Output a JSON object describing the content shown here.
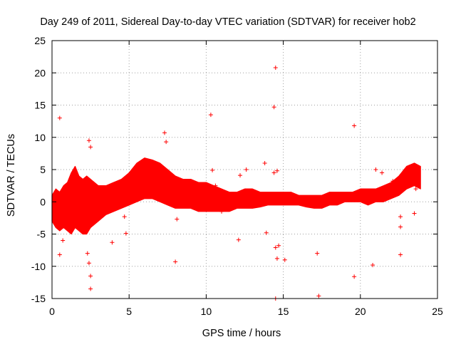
{
  "chart_data": {
    "type": "scatter",
    "title": "Day 249 of 2011, Sidereal Day-to-day VTEC variation (SDTVAR) for receiver hob2",
    "xlabel": "GPS time / hours",
    "ylabel": "SDTVAR / TECUs",
    "xlim": [
      0,
      25
    ],
    "ylim": [
      -15,
      25
    ],
    "x_ticks": [
      0,
      5,
      10,
      15,
      20,
      25
    ],
    "y_ticks": [
      -15,
      -10,
      -5,
      0,
      5,
      10,
      15,
      20,
      25
    ],
    "grid": true,
    "marker": "plus",
    "color": "#ff0000",
    "series": [
      {
        "name": "SDTVAR",
        "band_x": [
          0.0,
          0.25,
          0.5,
          0.75,
          1.0,
          1.25,
          1.5,
          1.75,
          2.0,
          2.25,
          2.5,
          2.75,
          3.0,
          3.5,
          4.0,
          4.5,
          5.0,
          5.5,
          6.0,
          6.5,
          7.0,
          7.5,
          8.0,
          8.5,
          9.0,
          9.5,
          10.0,
          10.5,
          11.0,
          11.5,
          12.0,
          12.5,
          13.0,
          13.5,
          14.0,
          14.5,
          15.0,
          15.5,
          16.0,
          16.5,
          17.0,
          17.5,
          18.0,
          18.5,
          19.0,
          19.5,
          20.0,
          20.5,
          21.0,
          21.5,
          22.0,
          22.5,
          23.0,
          23.5,
          23.9
        ],
        "band_low": [
          -3.0,
          -4.0,
          -4.5,
          -4.0,
          -4.5,
          -5.0,
          -4.0,
          -4.5,
          -5.0,
          -5.0,
          -4.0,
          -3.5,
          -3.0,
          -2.0,
          -1.5,
          -1.0,
          -0.5,
          0.0,
          0.5,
          0.5,
          0.0,
          -0.5,
          -1.0,
          -1.0,
          -1.0,
          -1.5,
          -1.5,
          -1.5,
          -1.5,
          -1.5,
          -1.0,
          -1.0,
          -1.0,
          -0.8,
          -0.5,
          -0.5,
          -0.5,
          -0.5,
          -0.5,
          -0.8,
          -1.0,
          -1.0,
          -0.5,
          -0.5,
          0.0,
          0.0,
          0.0,
          -0.5,
          0.0,
          0.0,
          0.5,
          1.0,
          2.0,
          2.5,
          2.0
        ],
        "band_high": [
          1.0,
          2.0,
          1.5,
          2.5,
          3.0,
          4.5,
          5.5,
          4.0,
          3.5,
          4.0,
          3.5,
          3.0,
          2.5,
          2.5,
          3.0,
          3.5,
          4.5,
          6.0,
          6.8,
          6.5,
          6.0,
          5.0,
          4.0,
          3.5,
          3.5,
          3.0,
          3.0,
          2.5,
          2.0,
          1.5,
          1.5,
          2.0,
          2.0,
          1.5,
          1.5,
          1.5,
          1.5,
          1.5,
          1.0,
          1.0,
          1.0,
          1.0,
          1.5,
          1.5,
          1.5,
          1.5,
          2.0,
          2.0,
          2.0,
          2.5,
          3.0,
          4.0,
          5.5,
          6.0,
          5.5
        ],
        "outliers": [
          [
            0.5,
            13.0
          ],
          [
            0.5,
            -8.2
          ],
          [
            0.7,
            -6.0
          ],
          [
            2.3,
            -8.0
          ],
          [
            2.4,
            -9.5
          ],
          [
            2.5,
            -11.5
          ],
          [
            2.5,
            -13.5
          ],
          [
            2.4,
            9.5
          ],
          [
            2.5,
            8.5
          ],
          [
            3.9,
            -6.3
          ],
          [
            4.7,
            -2.3
          ],
          [
            4.8,
            -4.9
          ],
          [
            7.3,
            10.7
          ],
          [
            7.4,
            9.3
          ],
          [
            8.0,
            -9.3
          ],
          [
            8.1,
            -2.7
          ],
          [
            10.3,
            13.5
          ],
          [
            10.4,
            4.9
          ],
          [
            10.6,
            2.5
          ],
          [
            11.0,
            -1.5
          ],
          [
            12.1,
            -5.9
          ],
          [
            12.2,
            4.1
          ],
          [
            12.6,
            5.0
          ],
          [
            13.8,
            6.0
          ],
          [
            13.9,
            -4.8
          ],
          [
            14.5,
            20.8
          ],
          [
            14.4,
            14.7
          ],
          [
            14.4,
            4.5
          ],
          [
            14.6,
            4.8
          ],
          [
            14.5,
            -7.1
          ],
          [
            14.7,
            -6.8
          ],
          [
            14.6,
            -8.8
          ],
          [
            14.5,
            -15.0
          ],
          [
            15.1,
            -9.0
          ],
          [
            17.3,
            -14.6
          ],
          [
            17.2,
            -8.0
          ],
          [
            19.6,
            11.8
          ],
          [
            19.6,
            -11.6
          ],
          [
            20.8,
            -9.8
          ],
          [
            21.4,
            4.5
          ],
          [
            21.0,
            5.0
          ],
          [
            22.1,
            3.2
          ],
          [
            22.6,
            -2.3
          ],
          [
            22.6,
            -3.9
          ],
          [
            22.6,
            -8.2
          ],
          [
            23.5,
            -1.8
          ],
          [
            23.6,
            2.0
          ]
        ]
      }
    ]
  }
}
